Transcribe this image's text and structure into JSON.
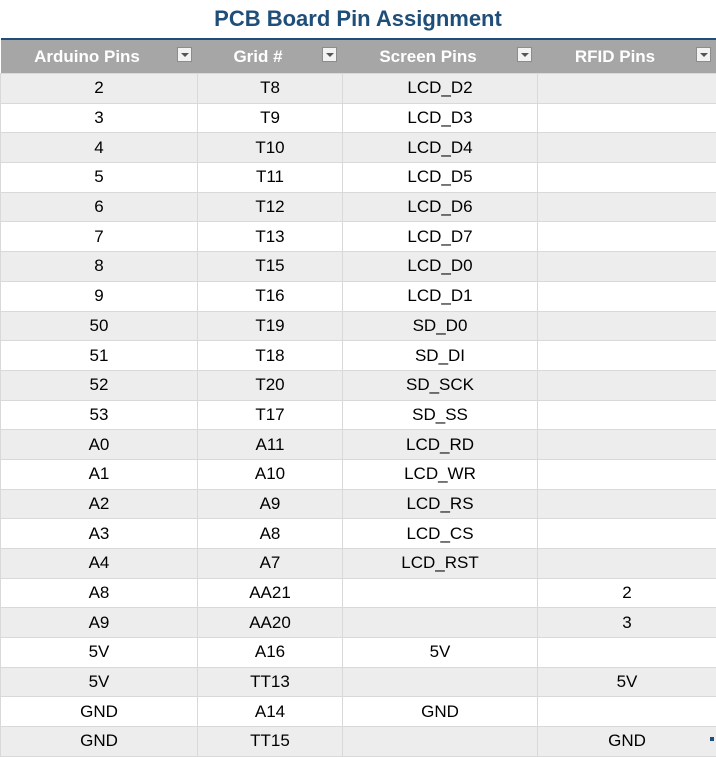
{
  "title": "PCB Board Pin Assignment",
  "columns": [
    "Arduino Pins",
    "Grid #",
    "Screen Pins",
    "RFID Pins"
  ],
  "rows": [
    [
      "2",
      "T8",
      "LCD_D2",
      ""
    ],
    [
      "3",
      "T9",
      "LCD_D3",
      ""
    ],
    [
      "4",
      "T10",
      "LCD_D4",
      ""
    ],
    [
      "5",
      "T11",
      "LCD_D5",
      ""
    ],
    [
      "6",
      "T12",
      "LCD_D6",
      ""
    ],
    [
      "7",
      "T13",
      "LCD_D7",
      ""
    ],
    [
      "8",
      "T15",
      "LCD_D0",
      ""
    ],
    [
      "9",
      "T16",
      "LCD_D1",
      ""
    ],
    [
      "50",
      "T19",
      "SD_D0",
      ""
    ],
    [
      "51",
      "T18",
      "SD_DI",
      ""
    ],
    [
      "52",
      "T20",
      "SD_SCK",
      ""
    ],
    [
      "53",
      "T17",
      "SD_SS",
      ""
    ],
    [
      "A0",
      "A11",
      "LCD_RD",
      ""
    ],
    [
      "A1",
      "A10",
      "LCD_WR",
      ""
    ],
    [
      "A2",
      "A9",
      "LCD_RS",
      ""
    ],
    [
      "A3",
      "A8",
      "LCD_CS",
      ""
    ],
    [
      "A4",
      "A7",
      "LCD_RST",
      ""
    ],
    [
      "A8",
      "AA21",
      "",
      "2"
    ],
    [
      "A9",
      "AA20",
      "",
      "3"
    ],
    [
      "5V",
      "A16",
      "5V",
      ""
    ],
    [
      "5V",
      "TT13",
      "",
      "5V"
    ],
    [
      "GND",
      "A14",
      "GND",
      ""
    ],
    [
      "GND",
      "TT15",
      "",
      "GND"
    ]
  ],
  "colors": {
    "title": "#1f4e79",
    "header_bg": "#a6a6a6",
    "band": "#ededed"
  },
  "icons": {
    "filter": "chevron-down-icon"
  }
}
